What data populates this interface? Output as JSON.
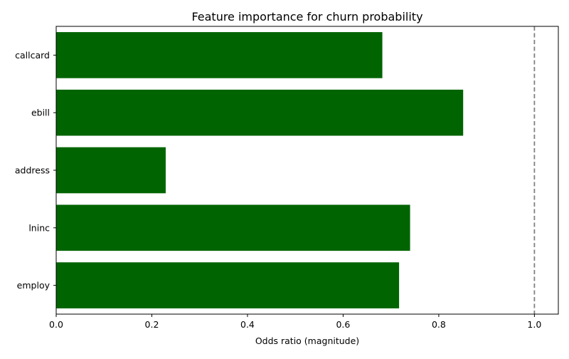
{
  "chart_data": {
    "type": "bar",
    "orientation": "horizontal",
    "title": "Feature importance for churn probability",
    "xlabel": "Odds ratio (magnitude)",
    "ylabel": "",
    "categories": [
      "callcard",
      "ebill",
      "address",
      "lninc",
      "employ"
    ],
    "values": [
      0.682,
      0.851,
      0.229,
      0.74,
      0.717
    ],
    "xlim": [
      0,
      1.05
    ],
    "xticks": [
      0.0,
      0.2,
      0.4,
      0.6,
      0.8,
      1.0
    ],
    "xtick_labels": [
      "0.0",
      "0.2",
      "0.4",
      "0.6",
      "0.8",
      "1.0"
    ],
    "reference_line": {
      "x": 1.0,
      "style": "dashed",
      "color": "#808080"
    },
    "bar_color": "#006400",
    "grid": false,
    "legend": "none"
  }
}
